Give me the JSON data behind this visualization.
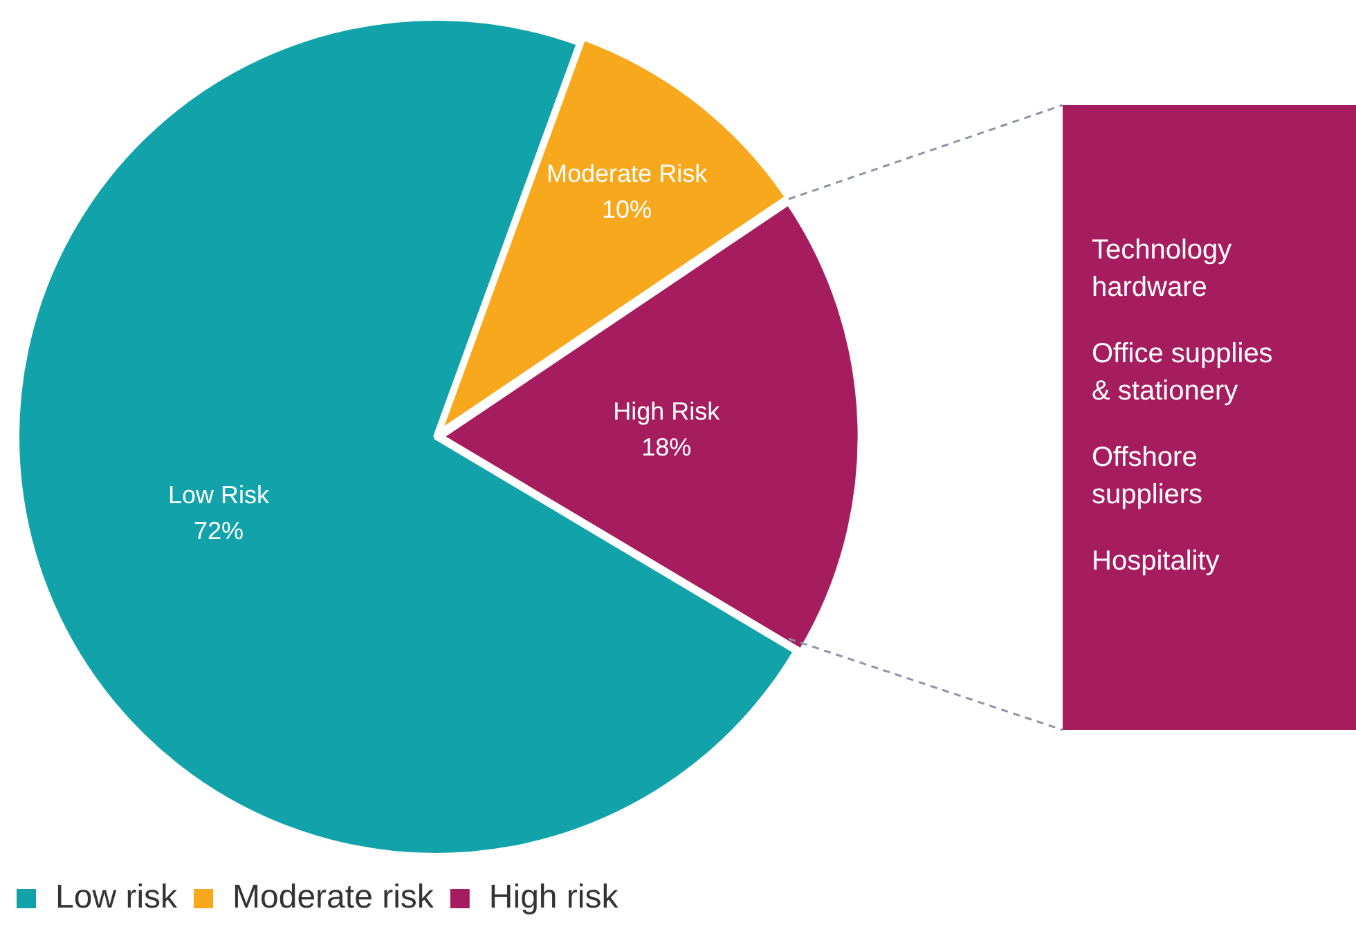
{
  "chart_data": {
    "type": "pie",
    "categories": [
      "Low risk",
      "Moderate risk",
      "High risk"
    ],
    "values": [
      72,
      10,
      18
    ],
    "colors": [
      "#12a3aa",
      "#f8a81c",
      "#a61d5f"
    ],
    "value_labels": [
      "Low Risk\n72%",
      "Moderate Risk\n10%",
      "High Risk\n18%"
    ],
    "legend": "bottom",
    "annotations": [
      "Technology hardware",
      "Office supplies & stationery",
      "Offshore suppliers",
      "Hospitality"
    ]
  }
}
